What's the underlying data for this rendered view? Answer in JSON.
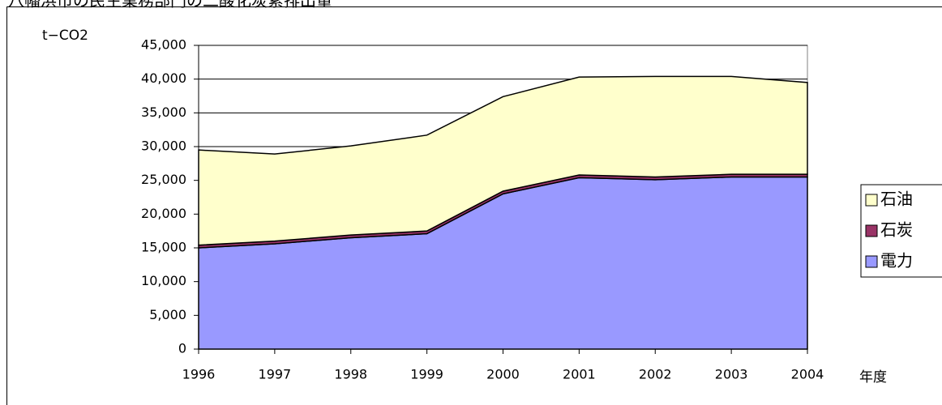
{
  "chart_data": {
    "type": "stacked_area",
    "title": "八幡浜市の民生業務部門の二酸化炭素排出量",
    "y_label": "t−CO2",
    "x_label": "年度",
    "categories": [
      "1996",
      "1997",
      "1998",
      "1999",
      "2000",
      "2001",
      "2002",
      "2003",
      "2004"
    ],
    "series": [
      {
        "name": "電力",
        "color": "#9999ff",
        "values": [
          15000,
          15600,
          16500,
          17100,
          23000,
          25400,
          25100,
          25500,
          25500
        ]
      },
      {
        "name": "石炭",
        "color": "#993366",
        "values": [
          400,
          400,
          400,
          400,
          400,
          400,
          400,
          400,
          400
        ]
      },
      {
        "name": "石油",
        "color": "#ffffcc",
        "values": [
          14100,
          12900,
          13200,
          14200,
          14000,
          14500,
          14900,
          14500,
          13600
        ]
      }
    ],
    "ylim": [
      0,
      45000
    ],
    "yticks": [
      0,
      {
        "value": 5000,
        "label": "5,000"
      },
      {
        "value": 10000,
        "label": "10,000"
      },
      {
        "value": 15000,
        "label": "15,000"
      },
      {
        "value": 20000,
        "label": "20,000"
      },
      {
        "value": 25000,
        "label": "25,000"
      },
      {
        "value": 30000,
        "label": "30,000"
      },
      {
        "value": 35000,
        "label": "35,000"
      },
      {
        "value": 40000,
        "label": "40,000"
      },
      {
        "value": 45000,
        "label": "45,000"
      }
    ],
    "grid": true,
    "legend": "right"
  }
}
